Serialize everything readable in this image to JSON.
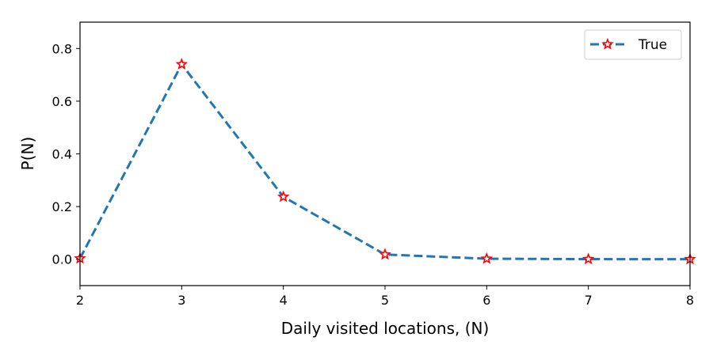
{
  "chart_data": {
    "type": "line",
    "xlabel": "Daily visited locations, (N)",
    "ylabel": "P(N)",
    "x": [
      2,
      3,
      4,
      5,
      6,
      7,
      8
    ],
    "series": [
      {
        "name": "True",
        "values": [
          0.003,
          0.74,
          0.237,
          0.018,
          0.002,
          0.0005,
          0.0001
        ],
        "line_color": "#1f77b4",
        "line_style": "dashed",
        "marker": "star",
        "marker_edge_color": "#ff0000",
        "marker_face_color": "#ffffff"
      }
    ],
    "xlim": [
      2,
      8
    ],
    "ylim": [
      -0.1,
      0.9
    ],
    "xticks": [
      2,
      3,
      4,
      5,
      6,
      7,
      8
    ],
    "yticks": [
      0.0,
      0.2,
      0.4,
      0.6,
      0.8
    ],
    "xtick_labels": [
      "2",
      "3",
      "4",
      "5",
      "6",
      "7",
      "8"
    ],
    "ytick_labels": [
      "0.0",
      "0.2",
      "0.4",
      "0.6",
      "0.8"
    ],
    "grid": false,
    "legend_position": "top-right"
  }
}
